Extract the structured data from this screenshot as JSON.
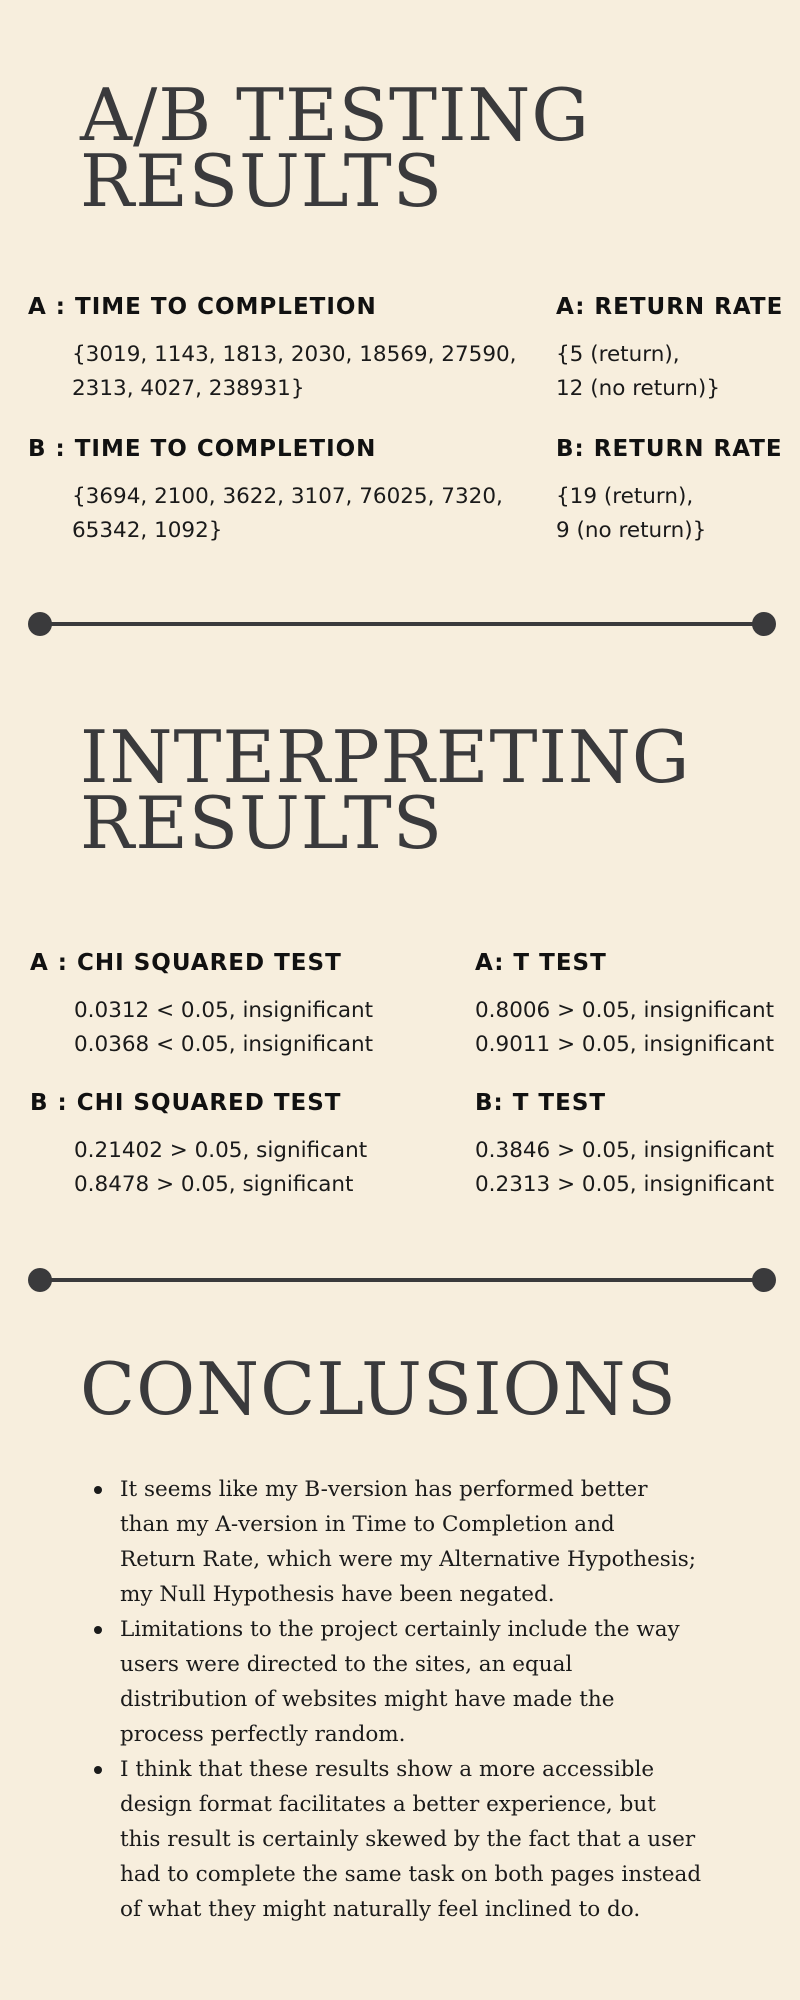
{
  "results": {
    "title_lines": [
      "A/B TESTING",
      "RESULTS"
    ],
    "a_time": {
      "label": "A : TIME TO COMPLETION",
      "lines": [
        "{3019, 1143, 1813, 2030, 18569, 27590,",
        "2313, 4027, 238931}"
      ]
    },
    "a_return": {
      "label": "A: RETURN RATE",
      "lines": [
        "{5 (return),",
        "12 (no return)}"
      ]
    },
    "b_time": {
      "label": "B : TIME TO COMPLETION",
      "lines": [
        "{3694, 2100, 3622, 3107, 76025, 7320,",
        "65342, 1092}"
      ]
    },
    "b_return": {
      "label": "B: RETURN RATE",
      "lines": [
        "{19 (return),",
        "9 (no return)}"
      ]
    }
  },
  "interpreting": {
    "title_lines": [
      "INTERPRETING",
      "RESULTS"
    ],
    "a_chi": {
      "label": "A : CHI SQUARED TEST",
      "lines": [
        "0.0312 < 0.05, insignificant",
        "0.0368 < 0.05, insignificant"
      ]
    },
    "a_t": {
      "label": "A: T TEST",
      "lines": [
        "0.8006 > 0.05, insignificant",
        "0.9011 > 0.05, insignificant"
      ]
    },
    "b_chi": {
      "label": "B : CHI SQUARED TEST",
      "lines": [
        "0.21402 > 0.05, significant",
        "0.8478 > 0.05, significant"
      ]
    },
    "b_t": {
      "label": "B: T TEST",
      "lines": [
        "0.3846 > 0.05, insignificant",
        "0.2313 > 0.05, insignificant"
      ]
    }
  },
  "conclusions": {
    "title": "CONCLUSIONS",
    "bullets": [
      {
        "lines": [
          "It seems like my B-version has performed better",
          "than my A-version in Time to Completion and",
          "Return Rate, which were my Alternative Hypothesis;",
          "my Null Hypothesis have been negated."
        ]
      },
      {
        "lines": [
          "Limitations to the project certainly include the way",
          "users were directed to the sites, an equal",
          "distribution of websites might have made the",
          "process perfectly random."
        ]
      },
      {
        "lines": [
          "I think that these results show a more accessible",
          "design format facilitates a better experience, but",
          "this result is certainly skewed by the fact that a user",
          "had to complete the same task on both pages instead",
          "of what they might naturally feel inclined to do."
        ]
      }
    ]
  },
  "colors": {
    "background": "#f7eedd",
    "heading": "#3a3a3c",
    "text": "#1a1a1a"
  }
}
